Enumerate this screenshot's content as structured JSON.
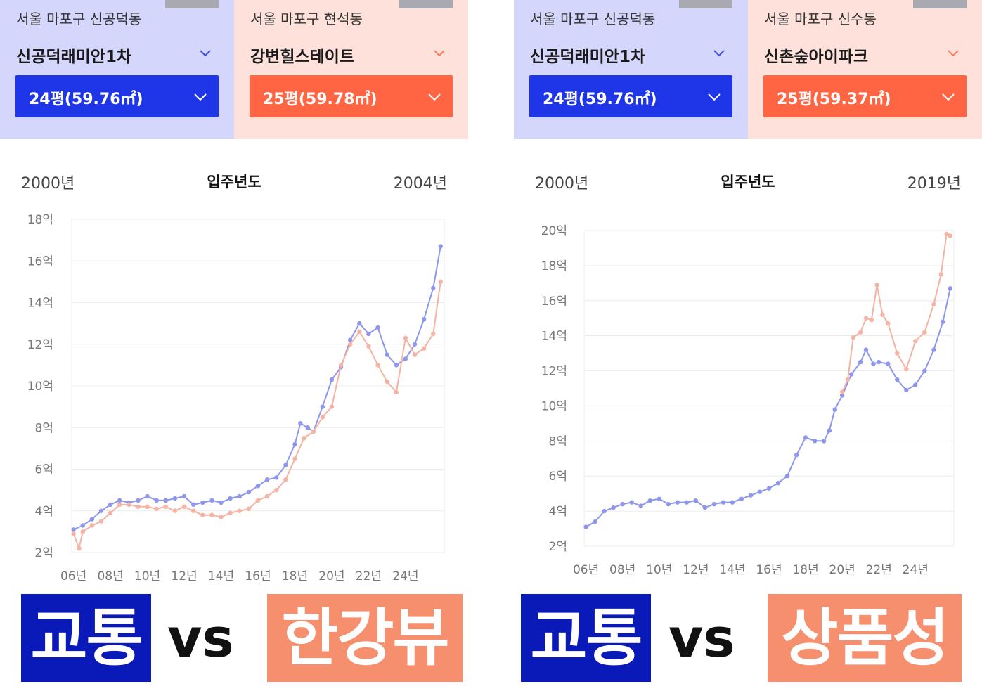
{
  "colors": {
    "blue_panel_bg": "#d4d6fb",
    "peach_panel_bg": "#fde1da",
    "blue_button": "#1f35e8",
    "orange_button": "#ff6543",
    "blue_line": "#8e97ec",
    "peach_line": "#f5b3a4",
    "banner_blue": "#0a1ab8",
    "banner_orange": "#f58f6e"
  },
  "panels": [
    {
      "selectors": [
        {
          "region": "서울 마포구 신공덕동",
          "name": "신공덕래미안1차",
          "size": "24평(59.76㎡)",
          "theme": "blue"
        },
        {
          "region": "서울 마포구 현석동",
          "name": "강변힐스테이트",
          "size": "25평(59.78㎡)",
          "theme": "orange"
        }
      ],
      "year_start": "2000년",
      "year_title": "입주년도",
      "year_end": "2004년",
      "banner": {
        "left": "교통",
        "vs": "vs",
        "right": "한강뷰"
      }
    },
    {
      "selectors": [
        {
          "region": "서울 마포구 신공덕동",
          "name": "신공덕래미안1차",
          "size": "24평(59.76㎡)",
          "theme": "blue"
        },
        {
          "region": "서울 마포구 신수동",
          "name": "신촌숲아이파크",
          "size": "25평(59.37㎡)",
          "theme": "orange"
        }
      ],
      "year_start": "2000년",
      "year_title": "입주년도",
      "year_end": "2019년",
      "banner": {
        "left": "교통",
        "vs": "vs",
        "right": "상품성"
      }
    }
  ],
  "chart_data": [
    {
      "type": "line",
      "x_ticks": [
        "06년",
        "08년",
        "10년",
        "12년",
        "14년",
        "16년",
        "18년",
        "20년",
        "22년",
        "24년"
      ],
      "y_ticks": [
        "2억",
        "4억",
        "6억",
        "8억",
        "10억",
        "12억",
        "14억",
        "16억",
        "18억"
      ],
      "ylim": [
        2,
        18
      ],
      "xlim": [
        2005.9,
        2026.1
      ],
      "grid": true,
      "series": [
        {
          "color": "#8e97ec",
          "points": [
            [
              2006.0,
              3.1
            ],
            [
              2006.5,
              3.3
            ],
            [
              2007.0,
              3.6
            ],
            [
              2007.5,
              4.0
            ],
            [
              2008.0,
              4.3
            ],
            [
              2008.5,
              4.5
            ],
            [
              2009.0,
              4.4
            ],
            [
              2009.5,
              4.5
            ],
            [
              2010.0,
              4.7
            ],
            [
              2010.5,
              4.5
            ],
            [
              2011.0,
              4.5
            ],
            [
              2011.5,
              4.6
            ],
            [
              2012.0,
              4.7
            ],
            [
              2012.5,
              4.3
            ],
            [
              2013.0,
              4.4
            ],
            [
              2013.5,
              4.5
            ],
            [
              2014.0,
              4.4
            ],
            [
              2014.5,
              4.6
            ],
            [
              2015.0,
              4.7
            ],
            [
              2015.5,
              4.9
            ],
            [
              2016.0,
              5.2
            ],
            [
              2016.5,
              5.5
            ],
            [
              2017.0,
              5.6
            ],
            [
              2017.5,
              6.2
            ],
            [
              2018.0,
              7.2
            ],
            [
              2018.3,
              8.2
            ],
            [
              2018.7,
              8.0
            ],
            [
              2019.0,
              7.8
            ],
            [
              2019.5,
              9.0
            ],
            [
              2020.0,
              10.3
            ],
            [
              2020.5,
              10.9
            ],
            [
              2021.0,
              12.2
            ],
            [
              2021.5,
              13.0
            ],
            [
              2022.0,
              12.5
            ],
            [
              2022.5,
              12.8
            ],
            [
              2023.0,
              11.5
            ],
            [
              2023.5,
              11.0
            ],
            [
              2024.0,
              11.3
            ],
            [
              2024.5,
              12.0
            ],
            [
              2025.0,
              13.2
            ],
            [
              2025.5,
              14.7
            ],
            [
              2025.9,
              16.7
            ]
          ]
        },
        {
          "color": "#f5b3a4",
          "points": [
            [
              2006.0,
              2.9
            ],
            [
              2006.3,
              2.2
            ],
            [
              2006.5,
              3.0
            ],
            [
              2007.0,
              3.3
            ],
            [
              2007.5,
              3.5
            ],
            [
              2008.0,
              3.9
            ],
            [
              2008.5,
              4.3
            ],
            [
              2009.0,
              4.3
            ],
            [
              2009.5,
              4.2
            ],
            [
              2010.0,
              4.2
            ],
            [
              2010.5,
              4.1
            ],
            [
              2011.0,
              4.2
            ],
            [
              2011.5,
              4.0
            ],
            [
              2012.0,
              4.2
            ],
            [
              2012.5,
              4.0
            ],
            [
              2013.0,
              3.8
            ],
            [
              2013.5,
              3.8
            ],
            [
              2014.0,
              3.7
            ],
            [
              2014.5,
              3.9
            ],
            [
              2015.0,
              4.0
            ],
            [
              2015.5,
              4.1
            ],
            [
              2016.0,
              4.5
            ],
            [
              2016.5,
              4.7
            ],
            [
              2017.0,
              5.0
            ],
            [
              2017.5,
              5.5
            ],
            [
              2018.0,
              6.5
            ],
            [
              2018.5,
              7.5
            ],
            [
              2019.0,
              7.8
            ],
            [
              2019.5,
              8.5
            ],
            [
              2020.0,
              9.0
            ],
            [
              2020.5,
              11.0
            ],
            [
              2021.0,
              12.0
            ],
            [
              2021.5,
              12.6
            ],
            [
              2022.0,
              11.9
            ],
            [
              2022.5,
              11.0
            ],
            [
              2023.0,
              10.2
            ],
            [
              2023.5,
              9.7
            ],
            [
              2024.0,
              12.3
            ],
            [
              2024.5,
              11.5
            ],
            [
              2025.0,
              11.8
            ],
            [
              2025.5,
              12.5
            ],
            [
              2025.9,
              15.0
            ]
          ]
        }
      ]
    },
    {
      "type": "line",
      "x_ticks": [
        "06년",
        "08년",
        "10년",
        "12년",
        "14년",
        "16년",
        "18년",
        "20년",
        "22년",
        "24년"
      ],
      "y_ticks": [
        "2억",
        "4억",
        "6억",
        "8억",
        "10억",
        "12억",
        "14억",
        "16억",
        "18억",
        "20억"
      ],
      "ylim": [
        2,
        20
      ],
      "xlim": [
        2005.9,
        2026.1
      ],
      "grid": true,
      "series": [
        {
          "color": "#8e97ec",
          "points": [
            [
              2006.0,
              3.1
            ],
            [
              2006.5,
              3.4
            ],
            [
              2007.0,
              4.0
            ],
            [
              2007.5,
              4.2
            ],
            [
              2008.0,
              4.4
            ],
            [
              2008.5,
              4.5
            ],
            [
              2009.0,
              4.3
            ],
            [
              2009.5,
              4.6
            ],
            [
              2010.0,
              4.7
            ],
            [
              2010.5,
              4.4
            ],
            [
              2011.0,
              4.5
            ],
            [
              2011.5,
              4.5
            ],
            [
              2012.0,
              4.6
            ],
            [
              2012.5,
              4.2
            ],
            [
              2013.0,
              4.4
            ],
            [
              2013.5,
              4.5
            ],
            [
              2014.0,
              4.5
            ],
            [
              2014.5,
              4.7
            ],
            [
              2015.0,
              4.9
            ],
            [
              2015.5,
              5.1
            ],
            [
              2016.0,
              5.3
            ],
            [
              2016.5,
              5.6
            ],
            [
              2017.0,
              6.0
            ],
            [
              2017.5,
              7.2
            ],
            [
              2018.0,
              8.2
            ],
            [
              2018.5,
              8.0
            ],
            [
              2019.0,
              8.0
            ],
            [
              2019.3,
              8.6
            ],
            [
              2019.6,
              9.8
            ],
            [
              2020.0,
              10.6
            ],
            [
              2020.5,
              11.8
            ],
            [
              2021.0,
              12.5
            ],
            [
              2021.3,
              13.2
            ],
            [
              2021.7,
              12.4
            ],
            [
              2022.0,
              12.5
            ],
            [
              2022.5,
              12.4
            ],
            [
              2023.0,
              11.5
            ],
            [
              2023.5,
              10.9
            ],
            [
              2024.0,
              11.2
            ],
            [
              2024.5,
              12.0
            ],
            [
              2025.0,
              13.2
            ],
            [
              2025.5,
              14.8
            ],
            [
              2025.9,
              16.7
            ]
          ]
        },
        {
          "color": "#f5b3a4",
          "points": [
            [
              2020.0,
              10.8
            ],
            [
              2020.3,
              11.5
            ],
            [
              2020.6,
              13.9
            ],
            [
              2021.0,
              14.2
            ],
            [
              2021.3,
              15.0
            ],
            [
              2021.6,
              14.9
            ],
            [
              2021.9,
              16.9
            ],
            [
              2022.2,
              15.2
            ],
            [
              2022.5,
              14.7
            ],
            [
              2023.0,
              13.0
            ],
            [
              2023.5,
              12.1
            ],
            [
              2024.0,
              13.7
            ],
            [
              2024.5,
              14.2
            ],
            [
              2025.0,
              15.8
            ],
            [
              2025.4,
              17.5
            ],
            [
              2025.7,
              19.8
            ],
            [
              2025.9,
              19.7
            ]
          ]
        }
      ]
    }
  ]
}
